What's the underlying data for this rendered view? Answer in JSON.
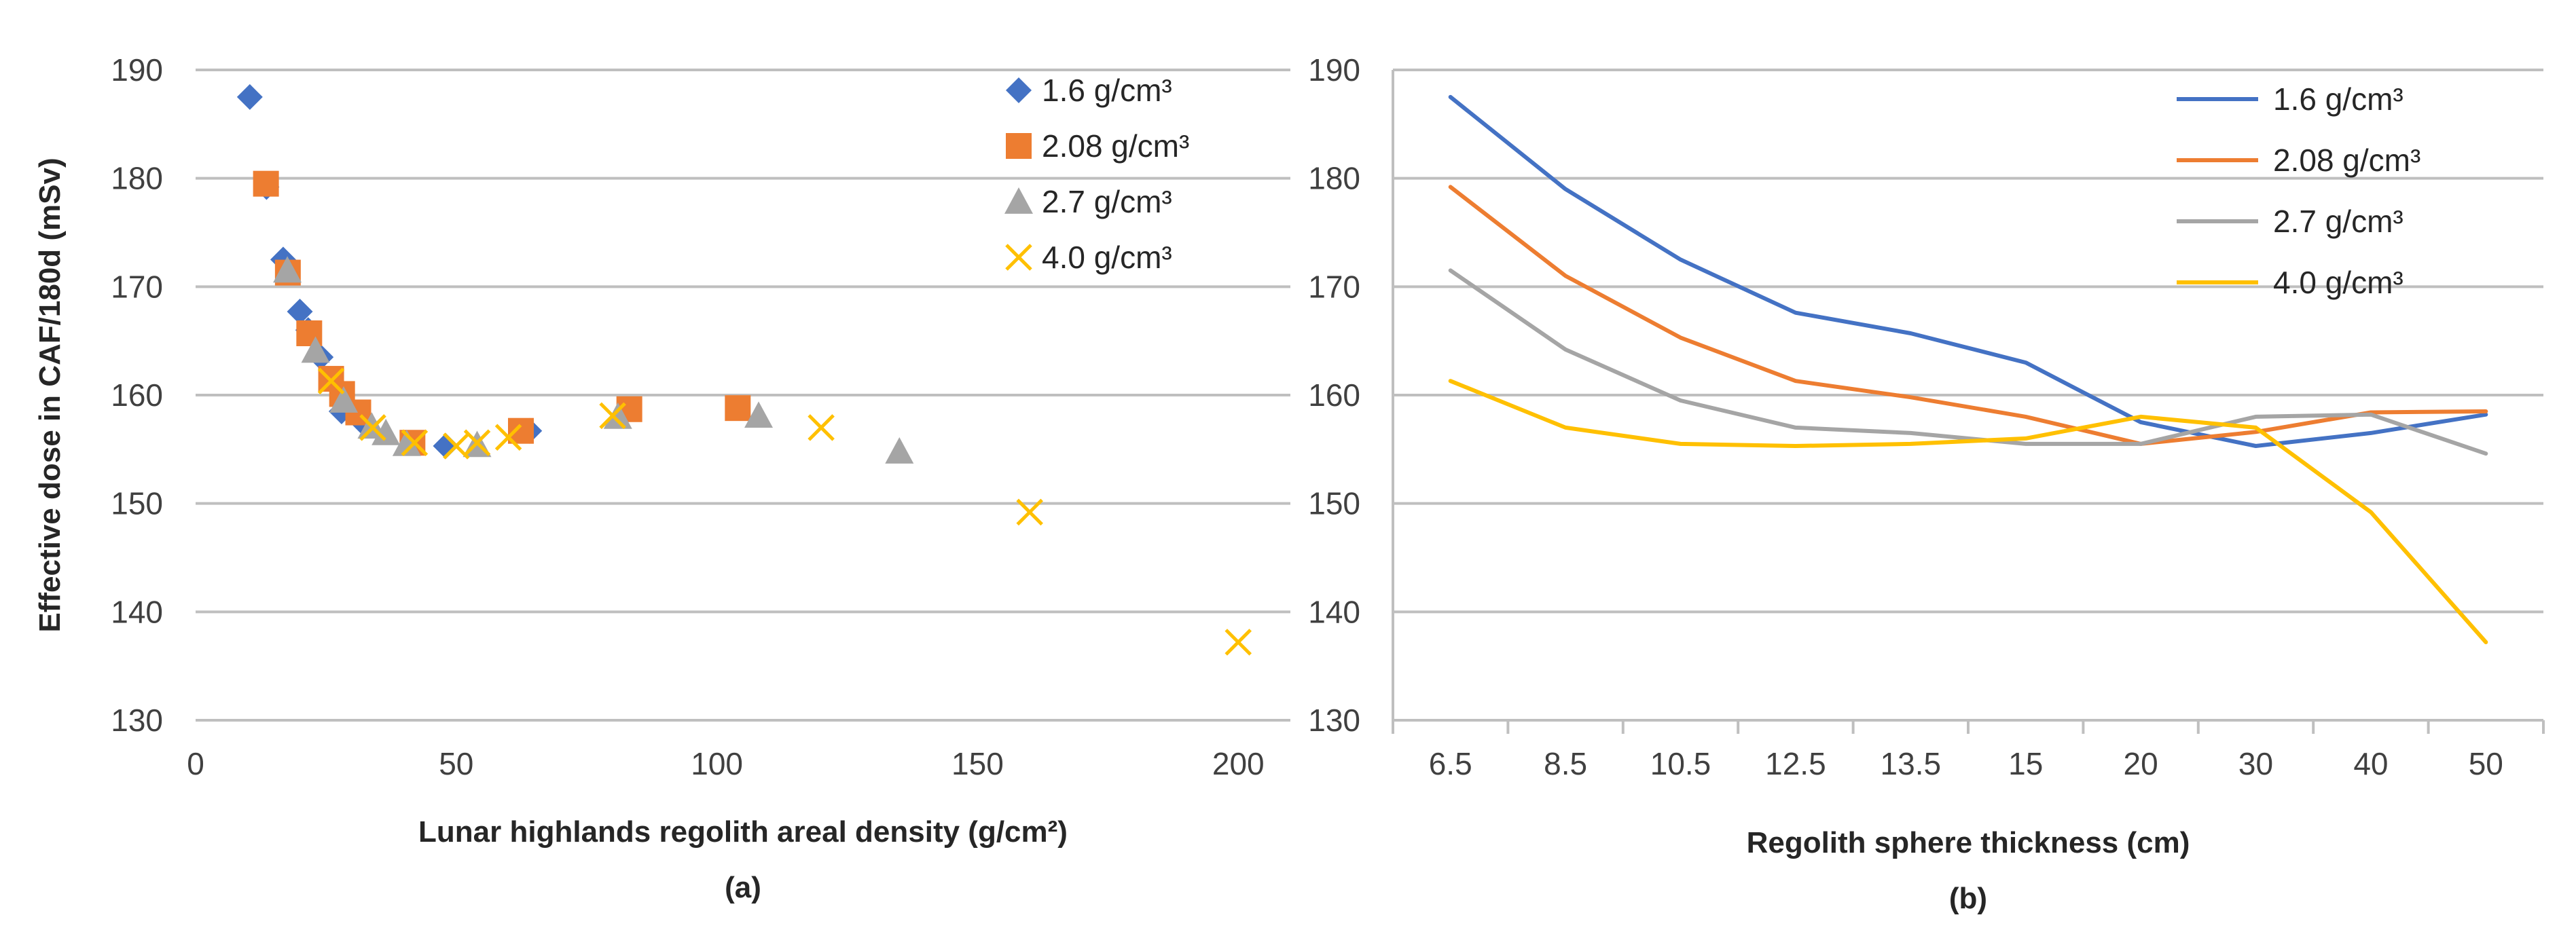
{
  "chart_data": [
    {
      "panel": "a",
      "type": "scatter",
      "title": "",
      "xlabel": "Lunar highlands regolith areal density (g/cm²)",
      "ylabel": "Effective dose in CAF/180d (mSv)",
      "caption": "(a)",
      "xlim": [
        0,
        210
      ],
      "ylim": [
        130,
        190
      ],
      "xticks": [
        "0",
        "50",
        "100",
        "150",
        "200"
      ],
      "yticks": [
        "130",
        "140",
        "150",
        "160",
        "170",
        "180",
        "190"
      ],
      "legend_position": "top-right",
      "series": [
        {
          "name": "1.6 g/cm³",
          "marker": "diamond",
          "color": "#4472C4",
          "x": [
            10.4,
            13.6,
            16.8,
            20.0,
            21.6,
            24.0,
            28.0,
            32.0,
            48.0,
            64.0
          ],
          "y": [
            187.5,
            179.2,
            172.5,
            167.7,
            166.0,
            163.5,
            158.5,
            157.5,
            155.3,
            156.7
          ]
        },
        {
          "name": "2.08 g/cm³",
          "marker": "square",
          "color": "#ED7D31",
          "x": [
            13.5,
            17.7,
            21.8,
            26.0,
            28.1,
            31.2,
            41.6,
            62.4,
            83.2,
            104.0
          ],
          "y": [
            179.5,
            171.3,
            165.7,
            161.5,
            160.1,
            158.4,
            155.6,
            156.7,
            158.7,
            158.8
          ]
        },
        {
          "name": "2.7 g/cm³",
          "marker": "triangle",
          "color": "#A5A5A5",
          "x": [
            17.6,
            23.0,
            28.4,
            33.8,
            36.5,
            40.5,
            54.0,
            81.0,
            108.0,
            135.0
          ],
          "y": [
            171.5,
            164.1,
            159.5,
            157.1,
            156.5,
            155.5,
            155.4,
            158.0,
            158.1,
            154.8
          ]
        },
        {
          "name": "4.0 g/cm³",
          "marker": "x",
          "color": "#FFC000",
          "x": [
            26.0,
            34.0,
            42.0,
            50.0,
            54.0,
            60.0,
            80.0,
            120.0,
            160.0,
            200.0
          ],
          "y": [
            161.3,
            157.0,
            155.6,
            155.3,
            155.6,
            156.1,
            158.1,
            157.0,
            149.2,
            137.2
          ]
        }
      ]
    },
    {
      "panel": "b",
      "type": "line",
      "title": "",
      "xlabel": "Regolith sphere thickness (cm)",
      "ylabel": "",
      "caption": "(b)",
      "categories": [
        "6.5",
        "8.5",
        "10.5",
        "12.5",
        "13.5",
        "15",
        "20",
        "30",
        "40",
        "50"
      ],
      "ylim": [
        130,
        190
      ],
      "yticks": [
        "130",
        "140",
        "150",
        "160",
        "170",
        "180",
        "190"
      ],
      "legend_position": "top-right",
      "series": [
        {
          "name": "1.6 g/cm³",
          "color": "#4472C4",
          "values": [
            187.5,
            179.0,
            172.5,
            167.6,
            165.7,
            163.0,
            157.5,
            155.3,
            156.5,
            158.2
          ]
        },
        {
          "name": "2.08 g/cm³",
          "color": "#ED7D31",
          "values": [
            179.2,
            171.0,
            165.3,
            161.3,
            159.8,
            158.0,
            155.5,
            156.6,
            158.4,
            158.5
          ]
        },
        {
          "name": "2.7 g/cm³",
          "color": "#A5A5A5",
          "values": [
            171.5,
            164.2,
            159.5,
            157.0,
            156.5,
            155.5,
            155.5,
            158.0,
            158.2,
            154.6
          ]
        },
        {
          "name": "4.0 g/cm³",
          "color": "#FFC000",
          "values": [
            161.3,
            157.0,
            155.5,
            155.3,
            155.5,
            156.0,
            158.0,
            157.0,
            149.2,
            137.2
          ]
        }
      ]
    }
  ]
}
